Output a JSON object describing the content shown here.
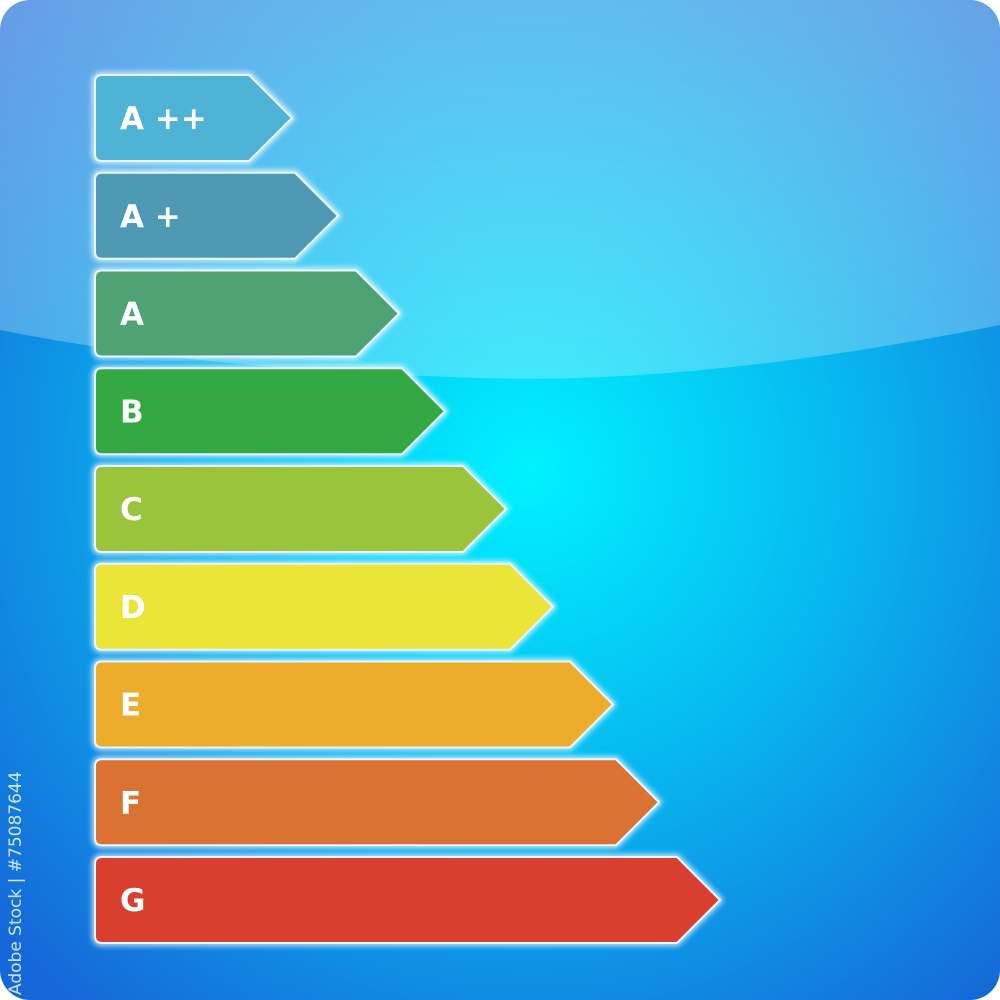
{
  "ratings": [
    {
      "label": "A ++",
      "color": "#4fb3d6"
    },
    {
      "label": "A +",
      "color": "#4e9ab5"
    },
    {
      "label": "A",
      "color": "#4fa274"
    },
    {
      "label": "B",
      "color": "#34a843"
    },
    {
      "label": "C",
      "color": "#9ac43c"
    },
    {
      "label": "D",
      "color": "#ebe53a"
    },
    {
      "label": "E",
      "color": "#ecad2d"
    },
    {
      "label": "F",
      "color": "#d97232"
    },
    {
      "label": "G",
      "color": "#d83f2e"
    }
  ],
  "background": {
    "base": "#1a74e0",
    "glow": "#00f0ff"
  },
  "watermark": "Adobe Stock | #75087644"
}
